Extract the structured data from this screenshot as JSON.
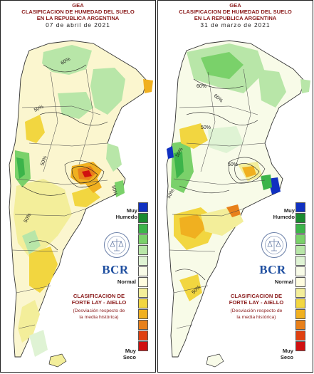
{
  "panels": [
    {
      "org": "GEA",
      "title1": "CLASIFICACION DE HUMEDAD DEL SUELO",
      "title2": "EN LA REPUBLICA ARGENTINA",
      "date": "07 de abril de 2021",
      "contour_labels": [
        "60%",
        "50%",
        "50%",
        "50%",
        "50%"
      ]
    },
    {
      "org": "GEA",
      "title1": "CLASIFICACION DE HUMEDAD DEL SUELO",
      "title2": "EN LA REPUBLICA ARGENTINA",
      "date": "31 de marzo de 2021",
      "contour_labels": [
        "60%",
        "60%",
        "50%",
        "50%",
        "50%",
        "50%",
        "50%"
      ]
    }
  ],
  "legend": {
    "top_label": "Muy\nHumedo",
    "middle_label": "Normal",
    "bottom_label": "Muy\nSeco",
    "colors": [
      "#1030c0",
      "#1a8a30",
      "#3cb44a",
      "#7ad16a",
      "#b8e6a8",
      "#dff3d4",
      "#f8fbe8",
      "#fffde0",
      "#f3ee9a",
      "#f2d640",
      "#f0b020",
      "#e8801a",
      "#e04010",
      "#d01010"
    ],
    "icons": [
      "seal-icon"
    ]
  },
  "logo": {
    "text": "BCR"
  },
  "classification": {
    "title1": "CLASIFICACION DE",
    "title2": "FORTE LAY - AIELLO",
    "note1": "(Desviación respecto de",
    "note2": "la media histórica)"
  }
}
